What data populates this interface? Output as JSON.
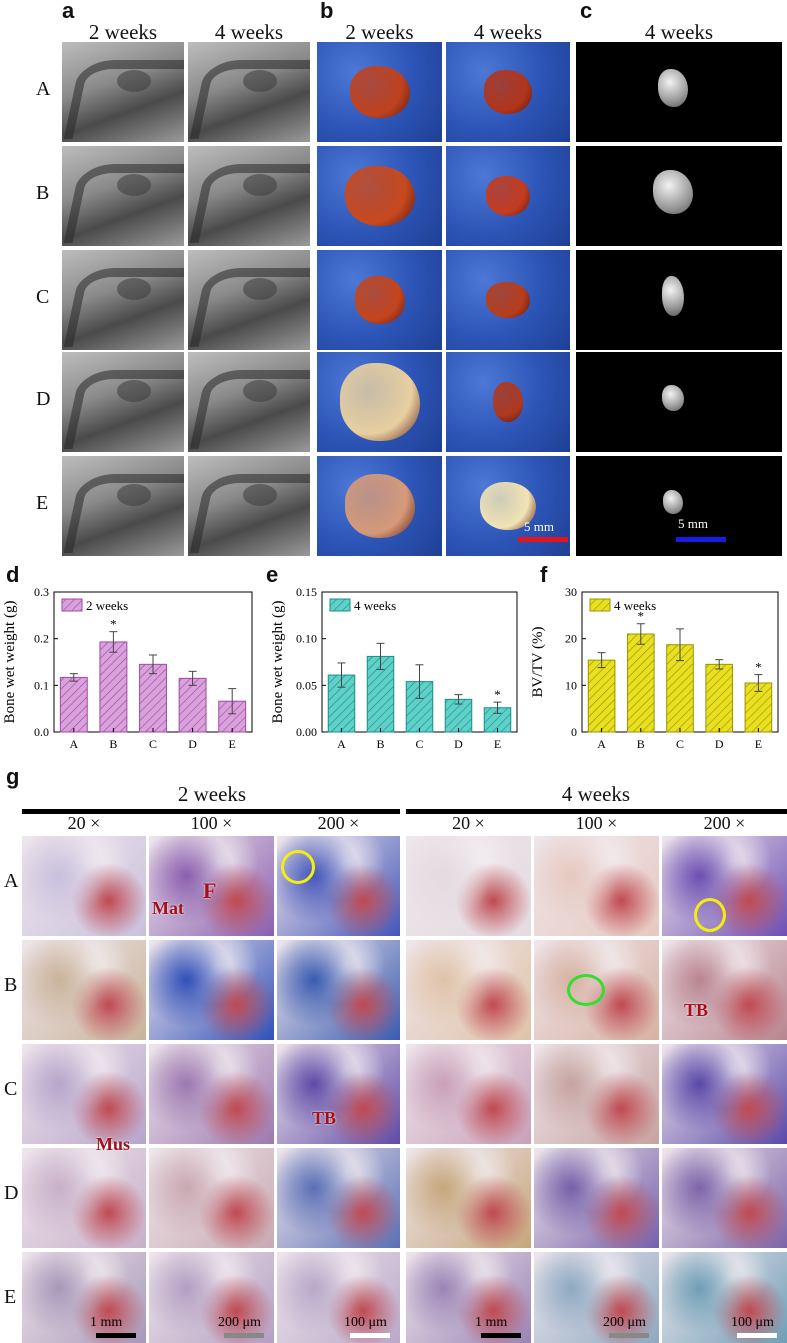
{
  "panels": {
    "a": {
      "label": "a",
      "cols": [
        "2 weeks",
        "4 weeks"
      ]
    },
    "b": {
      "label": "b",
      "cols": [
        "2 weeks",
        "4 weeks"
      ],
      "scale": "5 mm",
      "scale_color": "#e3141c"
    },
    "c": {
      "label": "c",
      "cols": [
        "4 weeks"
      ],
      "scale": "5 mm",
      "scale_color": "#1a1ae8"
    },
    "rows": [
      "A",
      "B",
      "C",
      "D",
      "E"
    ],
    "d": {
      "label": "d"
    },
    "e": {
      "label": "e"
    },
    "f": {
      "label": "f"
    },
    "g": {
      "label": "g",
      "groups": [
        "2 weeks",
        "4 weeks"
      ],
      "mags": [
        "20 ×",
        "100 ×",
        "200 ×",
        "20 ×",
        "100 ×",
        "200 ×"
      ],
      "rows": [
        "A",
        "B",
        "C",
        "D",
        "E"
      ],
      "annotations": {
        "mat": "Mat",
        "f": "F",
        "tb1": "TB",
        "tb2": "TB",
        "mus": "Mus"
      },
      "scales": [
        "1 mm",
        "200 μm",
        "100 μm",
        "1 mm",
        "200 μm",
        "100 μm"
      ]
    }
  },
  "chart_data": [
    {
      "type": "bar",
      "title": "",
      "categories": [
        "A",
        "B",
        "C",
        "D",
        "E"
      ],
      "series": [
        {
          "name": "2 weeks",
          "values": [
            0.117,
            0.193,
            0.145,
            0.115,
            0.066
          ],
          "errors": [
            0.008,
            0.022,
            0.02,
            0.015,
            0.027
          ]
        }
      ],
      "ylabel": "Bone wet weight (g)",
      "xlabel": "",
      "ylim": [
        0.0,
        0.3
      ],
      "yticks": [
        "0.0",
        "0.1",
        "0.2",
        "0.3"
      ],
      "significance": [
        "",
        "*",
        "",
        "",
        ""
      ],
      "color": "#d9a2db",
      "edge": "#a04aa6",
      "legend": "top-left"
    },
    {
      "type": "bar",
      "title": "",
      "categories": [
        "A",
        "B",
        "C",
        "D",
        "E"
      ],
      "series": [
        {
          "name": "4 weeks",
          "values": [
            0.061,
            0.081,
            0.054,
            0.035,
            0.026
          ],
          "errors": [
            0.013,
            0.014,
            0.018,
            0.005,
            0.006
          ]
        }
      ],
      "ylabel": "Bone wet weight (g)",
      "xlabel": "",
      "ylim": [
        0.0,
        0.15
      ],
      "yticks": [
        "0.00",
        "0.05",
        "0.10",
        "0.15"
      ],
      "significance": [
        "",
        "",
        "",
        "",
        "*"
      ],
      "color": "#5fd1c8",
      "edge": "#1b8f88",
      "legend": "top-left"
    },
    {
      "type": "bar",
      "title": "",
      "categories": [
        "A",
        "B",
        "C",
        "D",
        "E"
      ],
      "series": [
        {
          "name": "4 weeks",
          "values": [
            15.4,
            21.0,
            18.7,
            14.5,
            10.5
          ],
          "errors": [
            1.6,
            2.2,
            3.4,
            1.0,
            1.8
          ]
        }
      ],
      "ylabel": "BV/TV (%)",
      "xlabel": "",
      "ylim": [
        0,
        30
      ],
      "yticks": [
        "0",
        "10",
        "20",
        "30"
      ],
      "significance": [
        "",
        "*",
        "",
        "",
        "*"
      ],
      "color": "#e8e020",
      "edge": "#9a9400",
      "legend": "top-left"
    }
  ]
}
